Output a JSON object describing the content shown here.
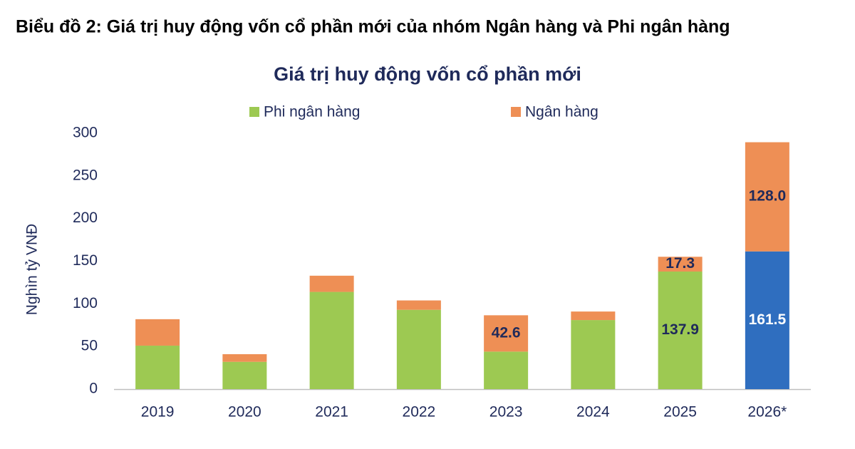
{
  "header": {
    "title": "Biểu đồ 2: Giá trị huy động vốn cổ phần mới của nhóm Ngân hàng và Phi ngân hàng"
  },
  "chart_data": {
    "type": "stacked-bar",
    "title": "Giá trị huy động vốn cổ phần mới",
    "ylabel": "Nghìn tỷ VNĐ",
    "categories": [
      "2019",
      "2020",
      "2021",
      "2022",
      "2023",
      "2024",
      "2025",
      "2026*"
    ],
    "series": [
      {
        "name": "Phi ngân hàng",
        "color": "#9dc952",
        "colors": [
          "#9dc952",
          "#9dc952",
          "#9dc952",
          "#9dc952",
          "#9dc952",
          "#9dc952",
          "#9dc952",
          "#2f6ebf"
        ],
        "values": [
          51,
          32,
          114,
          93,
          44,
          81,
          137.9,
          161.5
        ],
        "value_labels": [
          null,
          null,
          null,
          null,
          null,
          null,
          "137.9",
          "161.5"
        ]
      },
      {
        "name": "Ngân hàng",
        "color": "#ee8f55",
        "values": [
          31,
          9,
          19,
          11,
          42.6,
          10,
          17.3,
          128.0
        ],
        "value_labels": [
          null,
          null,
          null,
          null,
          "42.6",
          null,
          "17.3",
          "128.0"
        ]
      }
    ],
    "ylim": [
      0,
      300
    ],
    "yticks": [
      0,
      50,
      100,
      150,
      200,
      250,
      300
    ],
    "grid": false
  }
}
